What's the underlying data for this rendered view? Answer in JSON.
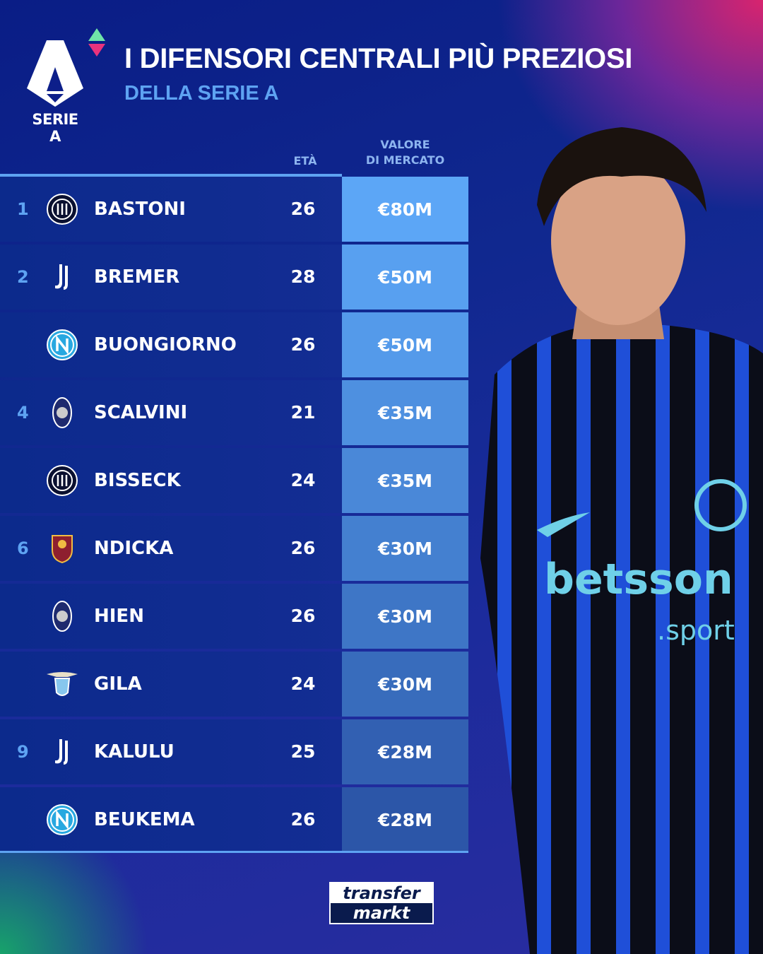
{
  "header": {
    "title": "I DIFENSORI CENTRALI PIÙ PREZIOSI",
    "subtitle": "DELLA SERIE A",
    "league_logo_text": "SERIE A"
  },
  "columns": {
    "age": "ETÀ",
    "value_line1": "VALORE",
    "value_line2": "DI MERCATO"
  },
  "rows": [
    {
      "rank": "1",
      "club": "Inter",
      "name": "BASTONI",
      "age": "26",
      "value": "€80M"
    },
    {
      "rank": "2",
      "club": "Juventus",
      "name": "BREMER",
      "age": "28",
      "value": "€50M"
    },
    {
      "rank": "",
      "club": "Napoli",
      "name": "BUONGIORNO",
      "age": "26",
      "value": "€50M"
    },
    {
      "rank": "4",
      "club": "Atalanta",
      "name": "SCALVINI",
      "age": "21",
      "value": "€35M"
    },
    {
      "rank": "",
      "club": "Inter",
      "name": "BISSECK",
      "age": "24",
      "value": "€35M"
    },
    {
      "rank": "6",
      "club": "Roma",
      "name": "NDICKA",
      "age": "26",
      "value": "€30M"
    },
    {
      "rank": "",
      "club": "Atalanta",
      "name": "HIEN",
      "age": "26",
      "value": "€30M"
    },
    {
      "rank": "",
      "club": "Lazio",
      "name": "GILA",
      "age": "24",
      "value": "€30M"
    },
    {
      "rank": "9",
      "club": "Juventus",
      "name": "KALULU",
      "age": "25",
      "value": "€28M"
    },
    {
      "rank": "",
      "club": "Napoli",
      "name": "BEUKEMA",
      "age": "26",
      "value": "€28M"
    }
  ],
  "value_colors": [
    "#5ca6f6",
    "#58a0f0",
    "#549aea",
    "#4e90e0",
    "#4a88d8",
    "#4480d0",
    "#3e76c6",
    "#386cbc",
    "#3260b2",
    "#2c56a8"
  ],
  "player_jersey_sponsor": "betsson",
  "player_jersey_sponsor2": ".sport",
  "footer": {
    "brand_line1": "transfer",
    "brand_line2": "markt"
  },
  "colors": {
    "accent": "#5ea3f2",
    "background": "#0d1f8a"
  }
}
